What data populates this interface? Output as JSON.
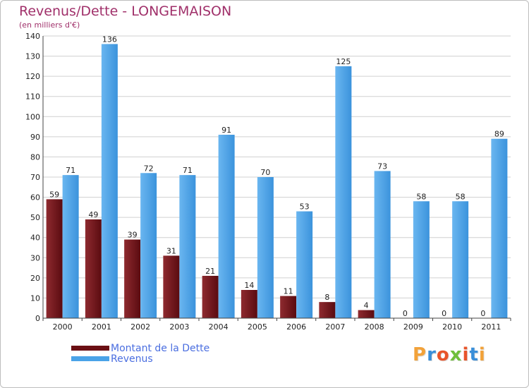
{
  "title": "Revenus/Dette - LONGEMAISON",
  "unit_label": "(en milliers d'€)",
  "logo_text": "Proxiti",
  "colors": {
    "dette": "#6b0f14",
    "revenus": "#4aa3e8",
    "title": "#a0306a",
    "legend_text": "#4a6ee0"
  },
  "chart_data": {
    "type": "bar",
    "title": "Revenus/Dette - LONGEMAISON",
    "ylabel": "(en milliers d'€)",
    "xlabel": "",
    "categories": [
      "2000",
      "2001",
      "2002",
      "2003",
      "2004",
      "2005",
      "2006",
      "2007",
      "2008",
      "2009",
      "2010",
      "2011"
    ],
    "series": [
      {
        "name": "Montant de la Dette",
        "values": [
          59,
          49,
          39,
          31,
          21,
          14,
          11,
          8,
          4,
          0,
          0,
          0
        ]
      },
      {
        "name": "Revenus",
        "values": [
          71,
          136,
          72,
          71,
          91,
          70,
          53,
          125,
          73,
          58,
          58,
          89
        ]
      }
    ],
    "ylim": [
      0,
      140
    ],
    "yticks": [
      0,
      10,
      20,
      30,
      40,
      50,
      60,
      70,
      80,
      90,
      100,
      110,
      120,
      130,
      140
    ],
    "grid": true,
    "legend_position": "bottom-left"
  }
}
